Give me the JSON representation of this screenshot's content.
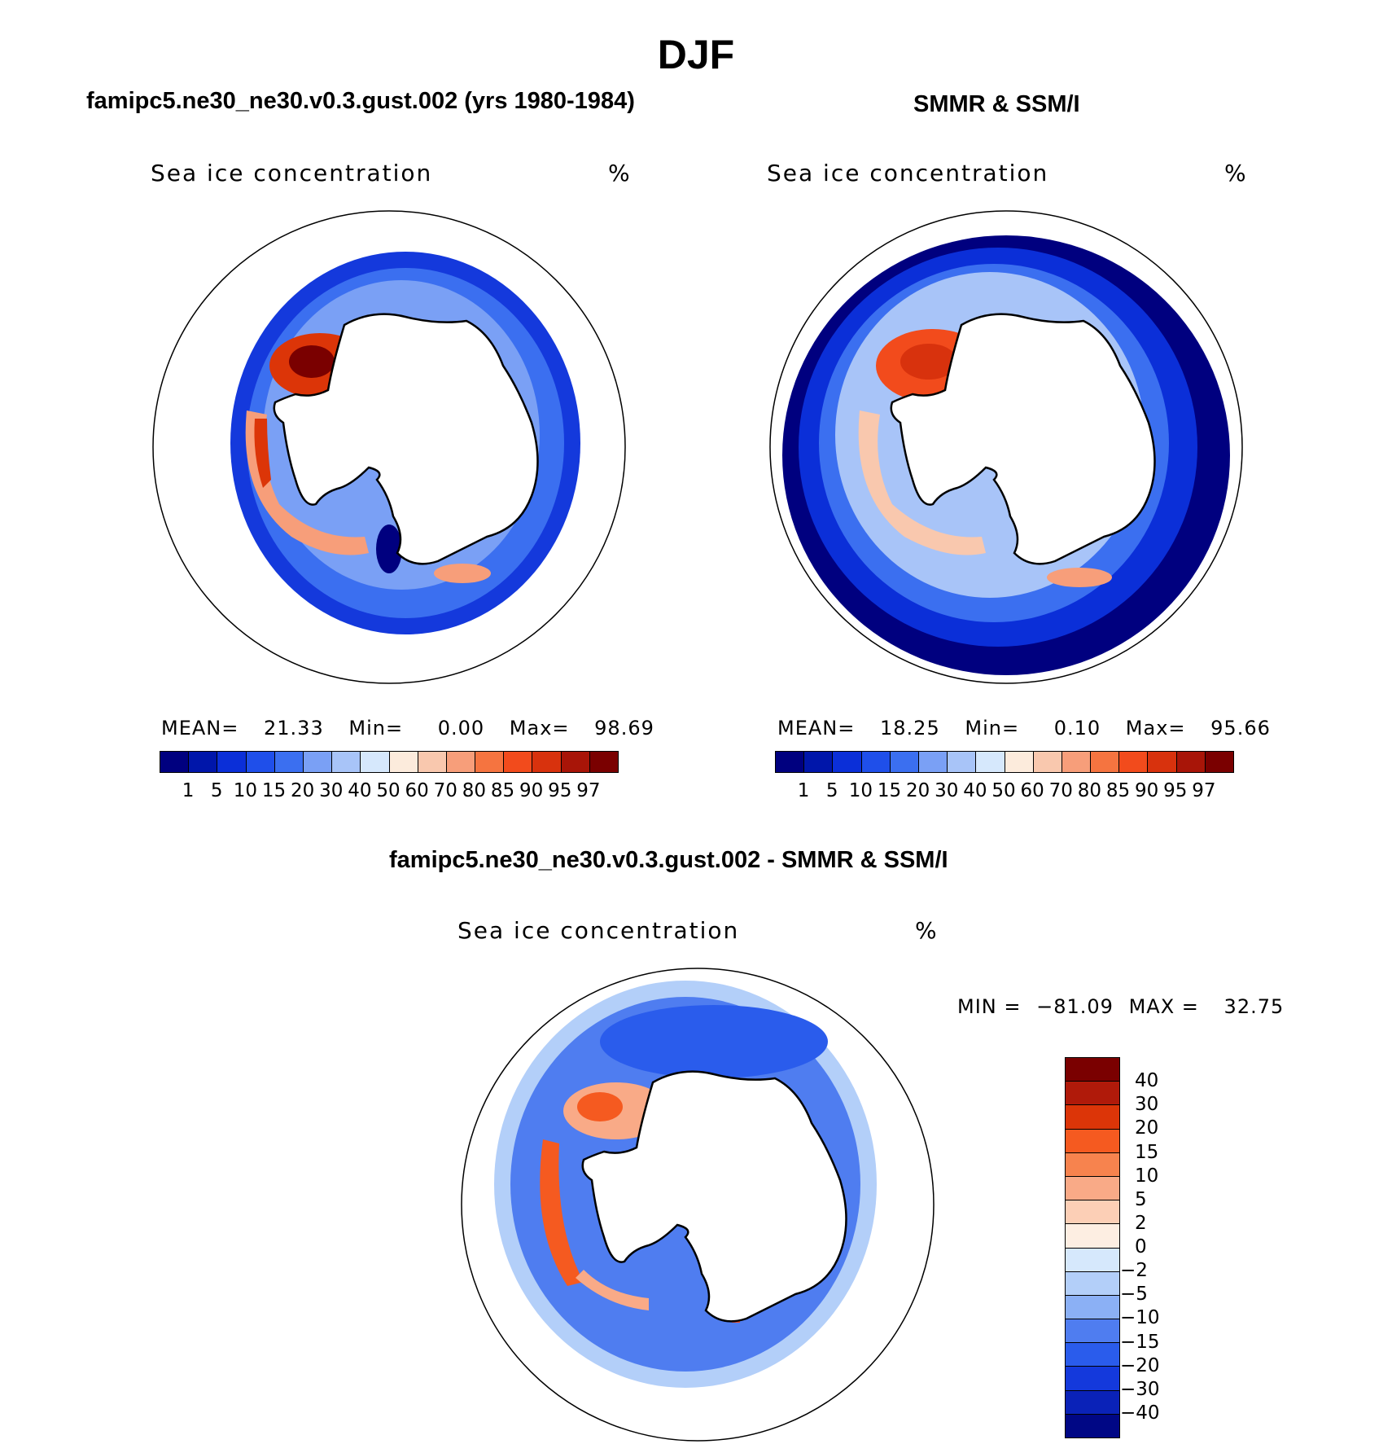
{
  "figure": {
    "season": "DJF"
  },
  "panels": {
    "model": {
      "title": "famipc5.ne30_ne30.v0.3.gust.002 (yrs 1980-1984)",
      "variable": "Sea ice concentration",
      "units": "%",
      "stats": {
        "mean_label": "MEAN=",
        "mean": "21.33",
        "min_label": "Min=",
        "min": "0.00",
        "max_label": "Max=",
        "max": "98.69"
      }
    },
    "obs": {
      "title": "SMMR & SSM/I",
      "variable": "Sea ice concentration",
      "units": "%",
      "stats": {
        "mean_label": "MEAN=",
        "mean": "18.25",
        "min_label": "Min=",
        "min": "0.10",
        "max_label": "Max=",
        "max": "95.66"
      }
    },
    "diff": {
      "title": "famipc5.ne30_ne30.v0.3.gust.002 - SMMR & SSM/I",
      "variable": "Sea ice concentration",
      "units": "%",
      "stats": {
        "min_label": "MIN =",
        "min": "−81.09",
        "max_label": "MAX =",
        "max": "32.75"
      }
    }
  },
  "colorbars": {
    "abs": {
      "colors": [
        "#00007f",
        "#0016aa",
        "#0b2fd8",
        "#1f4fea",
        "#3b6ff0",
        "#7aa0f5",
        "#a8c4f8",
        "#d6e8fc",
        "#fcebdc",
        "#f9c8ae",
        "#f79e7a",
        "#f57440",
        "#f24b1c",
        "#d8320d",
        "#a81508",
        "#7a0000"
      ],
      "labels": [
        "1",
        "5",
        "10",
        "15",
        "20",
        "30",
        "40",
        "50",
        "60",
        "70",
        "80",
        "85",
        "90",
        "95",
        "97"
      ]
    },
    "diff": {
      "colors": [
        "#7a0000",
        "#b01a0a",
        "#dc3508",
        "#f55a20",
        "#f7834e",
        "#f9aa87",
        "#fccfb6",
        "#fdeee2",
        "#d6e8fc",
        "#b3cff9",
        "#8bb0f5",
        "#4f7df0",
        "#2a5cec",
        "#1439dc",
        "#0a22b8",
        "#000785"
      ],
      "labels": [
        "40",
        "30",
        "20",
        "15",
        "10",
        "5",
        "2",
        "0",
        "−2",
        "−5",
        "−10",
        "−15",
        "−20",
        "−30",
        "−40"
      ]
    }
  },
  "map_fields": {
    "model": [
      {
        "region": "weddell-sea",
        "color": "#dc3508"
      },
      {
        "region": "weddell-core",
        "color": "#7a0000"
      },
      {
        "region": "ross-sea-band",
        "color": "#f79e7a"
      },
      {
        "region": "amundsen-bellingshausen",
        "color": "#f79e7a"
      }
    ],
    "obs": [
      {
        "region": "weddell-sea",
        "color": "#f24b1c"
      },
      {
        "region": "ross-sea-band",
        "color": "#f9c8ae"
      },
      {
        "region": "amundsen-bellingshausen",
        "color": "#fcebdc"
      }
    ],
    "diff": [
      {
        "region": "weddell-sea",
        "color": "#f7834e"
      },
      {
        "region": "ross-sea-band",
        "color": "#f55a20"
      },
      {
        "region": "open-ocean",
        "color": "#2a5cec"
      }
    ]
  }
}
